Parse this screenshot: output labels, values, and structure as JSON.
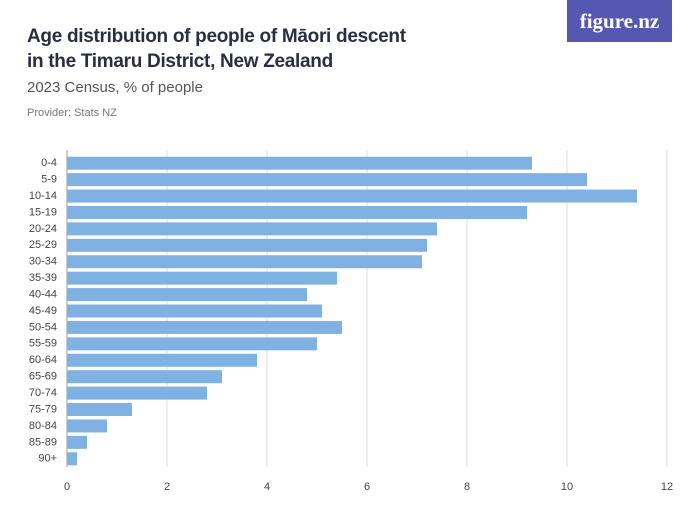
{
  "logo": "figure.nz",
  "chart_data": {
    "type": "hbar",
    "title": "Age distribution of people of Māori descent in the Timaru District, New Zealand",
    "subtitle": "2023 Census, % of people",
    "source": "Provider: Stats NZ",
    "categories": [
      "0-4",
      "5-9",
      "10-14",
      "15-19",
      "20-24",
      "25-29",
      "30-34",
      "35-39",
      "40-44",
      "45-49",
      "50-54",
      "55-59",
      "60-64",
      "65-69",
      "70-74",
      "75-79",
      "80-84",
      "85-89",
      "90+"
    ],
    "values": [
      9.3,
      10.4,
      11.4,
      9.2,
      7.4,
      7.2,
      7.1,
      5.4,
      4.8,
      5.1,
      5.5,
      5.0,
      3.8,
      3.1,
      2.8,
      1.3,
      0.8,
      0.4,
      0.2
    ],
    "color": "#7fb2e3",
    "xlim": [
      0,
      12
    ],
    "xticks": [
      0,
      2,
      4,
      6,
      8,
      10,
      12
    ],
    "grid": true
  }
}
